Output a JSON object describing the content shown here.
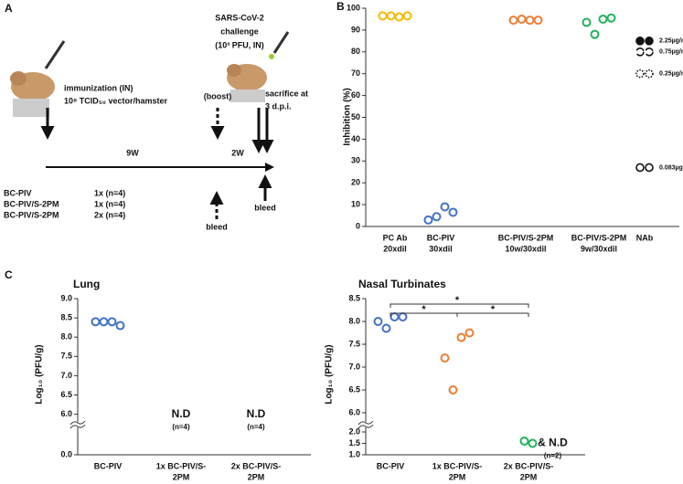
{
  "panel_labels": [
    "A",
    "B",
    "C"
  ],
  "diagram": {
    "immunization": [
      "immunization (IN)",
      "10⁸ TCID₅₀ vector/hamster"
    ],
    "challenge": [
      "SARS-CoV-2",
      "challenge",
      "(10³ PFU, IN)"
    ],
    "boost": "(boost)",
    "sacrifice": [
      "sacrifice at",
      "3 d.p.i."
    ],
    "intervals": [
      "9W",
      "2W"
    ],
    "groups": [
      [
        "BC-PIV",
        "1x (n=4)"
      ],
      [
        "BC-PIV/S-2PM",
        "1x (n=4)"
      ],
      [
        "BC-PIV/S-2PM",
        "2x (n=4)"
      ]
    ],
    "bleed": [
      "bleed",
      "bleed"
    ]
  },
  "chart_data": [
    {
      "type": "scatter",
      "y_label": "Inhibition (%)",
      "ylim": [
        0,
        100
      ],
      "yticks": [
        0,
        10,
        20,
        30,
        40,
        50,
        60,
        70,
        80,
        90,
        100
      ],
      "groups": [
        {
          "category": [
            "PC Ab",
            "20xdil"
          ],
          "color": "#f5b800",
          "values": [
            96.5,
            96.5,
            96,
            96.5
          ]
        },
        {
          "category": [
            "BC-PIV",
            "30xdil"
          ],
          "color": "#4472c4",
          "values": [
            3,
            4.5,
            9,
            6.5
          ]
        },
        {
          "category": [
            "BC-PIV/S-2PM",
            "10w/30xdil"
          ],
          "color": "#ed7d31",
          "values": [
            94.5,
            95,
            94.5,
            94.5
          ]
        },
        {
          "category": [
            "BC-PIV/S-2PM",
            "9w/30xdil"
          ],
          "color": "#21b35a",
          "values": [
            93.5,
            88,
            95,
            95.5
          ]
        },
        {
          "category": [
            "NAb"
          ],
          "values": []
        }
      ],
      "references": [
        {
          "label": "2.25µg/ml",
          "value": 85
        },
        {
          "label": "0.75µg/ml",
          "value": 80
        },
        {
          "label": "0.25µg/ml",
          "value": 70
        },
        {
          "label": "0.083µg/ml",
          "value": 27
        }
      ]
    },
    {
      "type": "scatter",
      "title": "Lung",
      "y_label": "Log₁₀ (PFU/g)",
      "ylim": [
        0,
        9
      ],
      "ybreak": [
        0.3,
        5.8
      ],
      "yticks": [
        {
          "value": 0,
          "label": "0.0"
        },
        {
          "value": 6,
          "label": "6.0"
        },
        6.5,
        {
          "value": 7,
          "label": "7.0"
        },
        7.5,
        {
          "value": 8,
          "label": "8.0"
        },
        8.5,
        {
          "value": 9,
          "label": "9.0"
        }
      ],
      "groups": [
        {
          "category": [
            "BC-PIV"
          ],
          "color": "#4472c4",
          "values": [
            8.4,
            8.4,
            8.4,
            8.3
          ]
        },
        {
          "category": [
            "1x BC-PIV/S-",
            "2PM"
          ],
          "color": "#ed7d31",
          "values": [],
          "note": [
            "N.D",
            "(n=4)"
          ]
        },
        {
          "category": [
            "2x BC-PIV/S-",
            "2PM"
          ],
          "color": "#21b35a",
          "values": [],
          "note": [
            "N.D",
            "(n=4)"
          ]
        }
      ]
    },
    {
      "type": "scatter",
      "title": "Nasal Turbinates",
      "y_label": "Log₁₀ (PFU/g)",
      "ylim": [
        1,
        8.5
      ],
      "ybreak": [
        2.2,
        5.8
      ],
      "yticks": [
        {
          "value": 1,
          "label": "1.0"
        },
        1.5,
        {
          "value": 2,
          "label": "2.0"
        },
        {
          "value": 6,
          "label": "6.0"
        },
        6.5,
        {
          "value": 7,
          "label": "7.0"
        },
        7.5,
        {
          "value": 8,
          "label": "8.0"
        },
        8.5
      ],
      "significance": [
        "*",
        "*",
        "*"
      ],
      "groups": [
        {
          "category": [
            "BC-PIV"
          ],
          "color": "#4472c4",
          "values": [
            8.0,
            7.85,
            8.1,
            8.1
          ]
        },
        {
          "category": [
            "1x BC-PIV/S-",
            "2PM"
          ],
          "color": "#ed7d31",
          "values": [
            7.2,
            6.5,
            7.65,
            7.75
          ]
        },
        {
          "category": [
            "2x BC-PIV/S-",
            "2PM"
          ],
          "color": "#21b35a",
          "values": [
            1.6,
            1.5
          ],
          "note": [
            "& N.D",
            "(n=2)"
          ]
        }
      ]
    }
  ]
}
